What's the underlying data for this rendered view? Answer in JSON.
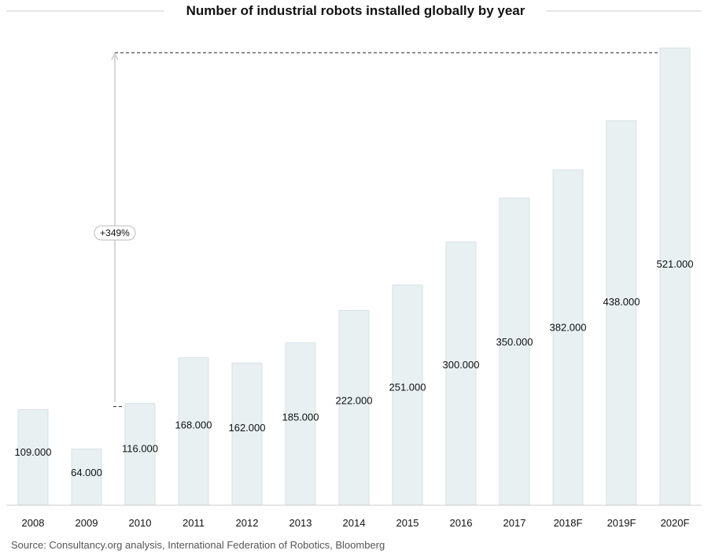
{
  "title": "Number of industrial robots installed globally by year",
  "source": "Source: Consultancy.org analysis, International Federation of Robotics, Bloomberg",
  "colors": {
    "bar_fill": "#e8f0f2",
    "bar_stroke": "#d6e2e6",
    "title_rule": "#cccccc",
    "axis_line": "#cccccc",
    "callout_line": "#222222",
    "arrow_line": "#cccccc"
  },
  "chart_data": {
    "type": "bar",
    "title": "Number of industrial robots installed globally by year",
    "xlabel": "",
    "ylabel": "",
    "categories": [
      "2008",
      "2009",
      "2010",
      "2011",
      "2012",
      "2013",
      "2014",
      "2015",
      "2016",
      "2017",
      "2018F",
      "2019F",
      "2020F"
    ],
    "values": [
      109000,
      64000,
      116000,
      168000,
      162000,
      185000,
      222000,
      251000,
      300000,
      350000,
      382000,
      438000,
      521000
    ],
    "value_labels": [
      "109.000",
      "64.000",
      "116.000",
      "168.000",
      "162.000",
      "185.000",
      "222.000",
      "251.000",
      "300.000",
      "350.000",
      "382.000",
      "438.000",
      "521.000"
    ],
    "ylim": [
      0,
      521000
    ],
    "grid": false,
    "legend": "none",
    "annotations": [
      {
        "text": "+349%",
        "from_category": "2010",
        "to_category": "2020F"
      }
    ]
  }
}
